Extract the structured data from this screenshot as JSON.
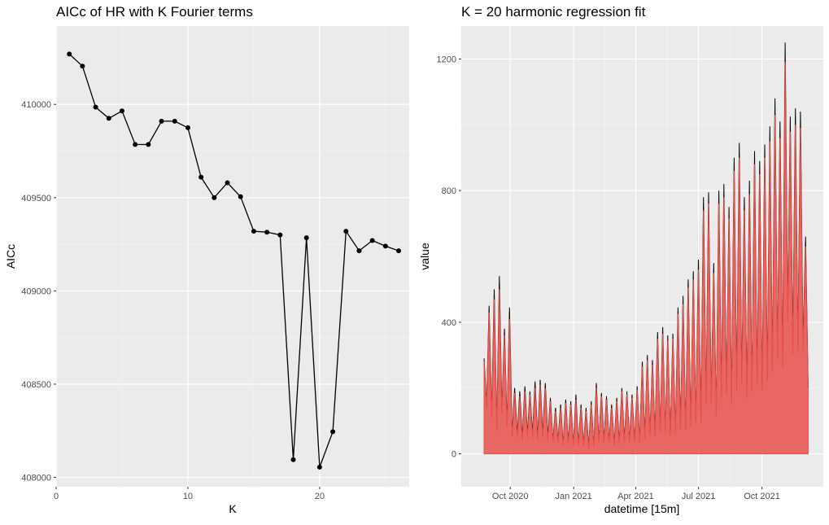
{
  "chart_data": [
    {
      "type": "line",
      "title": "AICc of HR with K Fourier terms",
      "xlabel": "K",
      "ylabel": "AICc",
      "xlim": [
        0,
        26.8
      ],
      "ylim": [
        407950,
        410420
      ],
      "x_ticks": [
        0,
        10,
        20
      ],
      "x_tick_labels": [
        "0",
        "10",
        "20"
      ],
      "y_ticks": [
        408000,
        408500,
        409000,
        409500,
        410000
      ],
      "y_tick_labels": [
        "408000",
        "408500",
        "409000",
        "409500",
        "410000"
      ],
      "grid": true,
      "points": true,
      "series": [
        {
          "x": [
            1,
            2,
            3,
            4,
            5,
            6,
            7,
            8,
            9,
            10,
            11,
            12,
            13,
            14,
            15,
            16,
            17,
            18,
            19,
            20,
            21,
            22,
            23,
            24,
            25,
            26
          ],
          "values": [
            410270,
            410205,
            409985,
            409925,
            409965,
            409785,
            409785,
            409910,
            409910,
            409875,
            409610,
            409500,
            409580,
            409505,
            409320,
            409315,
            409300,
            408095,
            409285,
            408055,
            408245,
            409320,
            409215,
            409270,
            409240,
            409215
          ]
        }
      ]
    },
    {
      "type": "line",
      "title": "K = 20 harmonic regression fit",
      "xlabel": "datetime [15m]",
      "ylabel": "value",
      "x_start": "2020-08-24",
      "x_end": "2021-12-07",
      "xlim": [
        "2020-07-22",
        "2021-12-29"
      ],
      "ylim": [
        -100,
        1300
      ],
      "x_ticks": [
        "2020-10-01",
        "2021-01-01",
        "2021-04-01",
        "2021-07-01",
        "2021-10-01"
      ],
      "x_tick_labels": [
        "Oct 2020",
        "Jan 2021",
        "Apr 2021",
        "Jul 2021",
        "Oct 2021"
      ],
      "y_ticks": [
        0,
        400,
        800,
        1200
      ],
      "y_tick_labels": [
        "0",
        "400",
        "800",
        "1200"
      ],
      "grid": true,
      "series": [
        {
          "color": "#000000",
          "values": [
            290,
            150,
            450,
            120,
            500,
            80,
            540,
            130,
            380,
            90,
            445,
            60,
            200,
            60,
            190,
            50,
            205,
            60,
            190,
            60,
            220,
            50,
            225,
            60,
            215,
            50,
            170,
            40,
            140,
            40,
            150,
            30,
            165,
            35,
            160,
            30,
            180,
            30,
            150,
            30,
            140,
            20,
            160,
            25,
            215,
            40,
            185,
            40,
            175,
            40,
            150,
            30,
            170,
            35,
            200,
            40,
            190,
            40,
            180,
            40,
            205,
            40,
            280,
            50,
            300,
            60,
            285,
            60,
            370,
            70,
            385,
            70,
            360,
            60,
            365,
            70,
            445,
            80,
            480,
            80,
            530,
            90,
            555,
            100,
            590,
            100,
            780,
            160,
            795,
            160,
            580,
            120,
            800,
            180,
            820,
            190,
            750,
            160,
            900,
            200,
            945,
            220,
            780,
            180,
            830,
            200,
            920,
            220,
            890,
            200,
            940,
            230,
            995,
            260,
            1080,
            300,
            1010,
            270,
            1250,
            420,
            1025,
            320,
            1050,
            330,
            1040,
            330,
            660,
            200
          ]
        },
        {
          "color": "#e8504a",
          "values": [
            280,
            140,
            430,
            110,
            470,
            70,
            500,
            120,
            360,
            80,
            410,
            50,
            185,
            50,
            175,
            40,
            190,
            50,
            180,
            50,
            200,
            40,
            210,
            50,
            200,
            40,
            160,
            35,
            130,
            35,
            140,
            25,
            155,
            30,
            150,
            25,
            165,
            25,
            140,
            25,
            130,
            15,
            150,
            20,
            200,
            35,
            175,
            35,
            165,
            35,
            140,
            25,
            160,
            30,
            190,
            35,
            180,
            35,
            170,
            35,
            195,
            35,
            265,
            45,
            285,
            55,
            270,
            55,
            350,
            65,
            365,
            65,
            345,
            55,
            350,
            65,
            425,
            75,
            455,
            75,
            505,
            85,
            530,
            95,
            560,
            95,
            740,
            150,
            760,
            150,
            550,
            115,
            760,
            170,
            780,
            180,
            715,
            150,
            860,
            190,
            900,
            210,
            740,
            170,
            790,
            190,
            880,
            210,
            850,
            190,
            900,
            220,
            950,
            250,
            1030,
            290,
            960,
            260,
            1190,
            400,
            980,
            300,
            1000,
            310,
            990,
            310,
            630,
            190
          ]
        }
      ]
    }
  ]
}
